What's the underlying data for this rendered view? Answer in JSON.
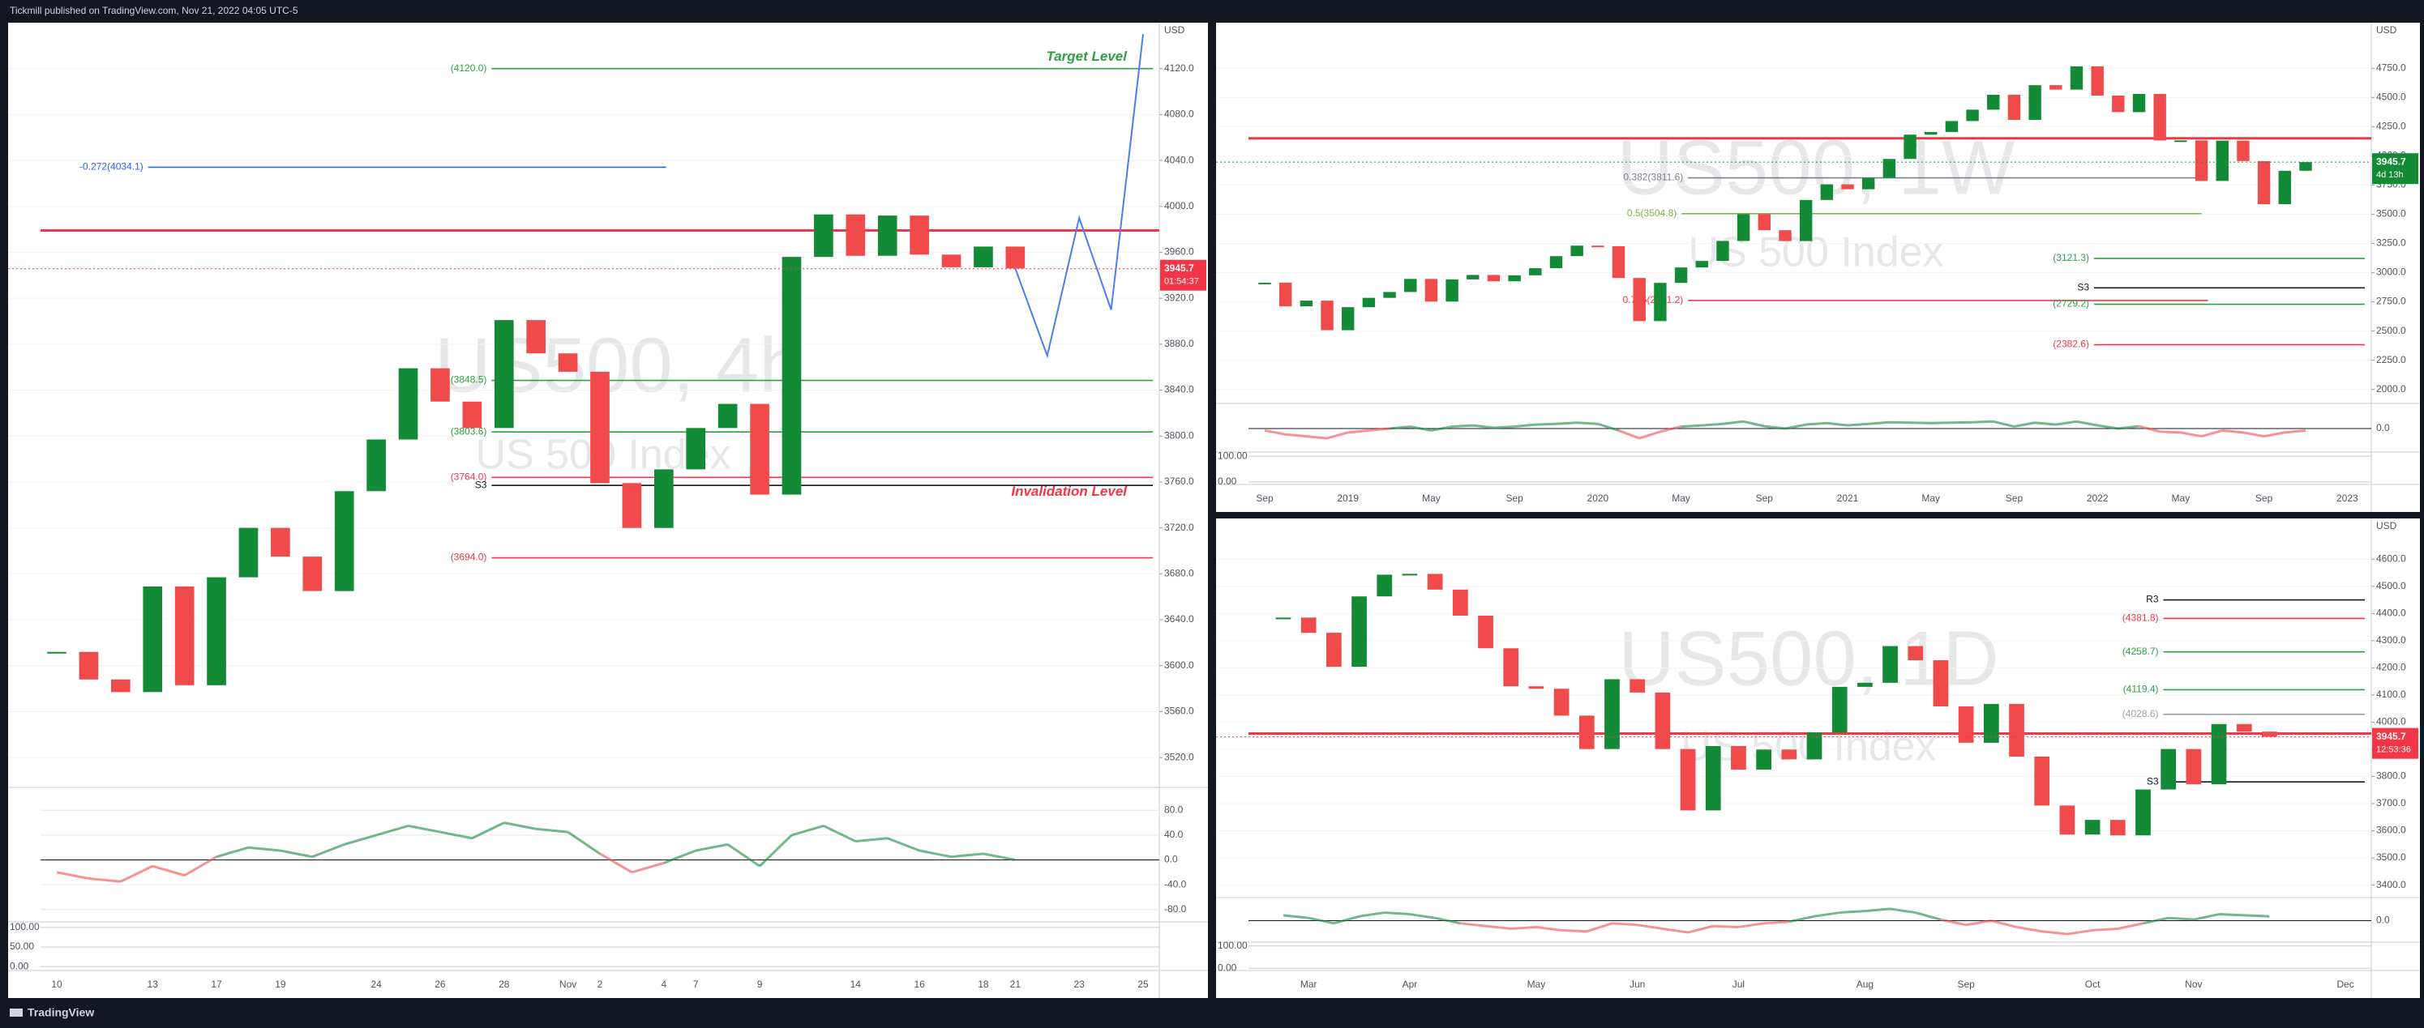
{
  "header": {
    "text": "Tickmill published on TradingView.com, Nov 21, 2022 04:05 UTC-5"
  },
  "footer": {
    "brand": "TradingView"
  },
  "chart_data": [
    {
      "type": "candlestick",
      "title": "US500, 4h",
      "subtitle": "US 500 Index",
      "currency": "USD",
      "up_color": "#138a36",
      "down_color": "#f04a4a",
      "categories": [
        "10",
        null,
        null,
        "13",
        null,
        "17",
        null,
        "19",
        null,
        null,
        "24",
        null,
        "26",
        null,
        "28",
        null,
        "Nov",
        "2",
        null,
        "4",
        "7",
        null,
        "9",
        null,
        null,
        "14",
        null,
        "16",
        null,
        "18",
        "21",
        null,
        "23",
        null,
        "25"
      ],
      "values": [
        3612,
        3588,
        3577,
        3669,
        3583,
        3677,
        3720,
        3695,
        3665,
        3752,
        3797,
        3859,
        3830,
        3807,
        3901,
        3872,
        3856,
        3759,
        3720,
        3771,
        3807,
        3828,
        3749,
        3956,
        3993,
        3957,
        3992,
        3958,
        3947,
        3965,
        3946,
        null,
        null,
        null,
        null
      ],
      "projection": {
        "color": "#4a7df0",
        "values": [
          null,
          null,
          null,
          null,
          null,
          null,
          null,
          null,
          null,
          null,
          null,
          null,
          null,
          null,
          null,
          null,
          null,
          null,
          null,
          null,
          null,
          null,
          null,
          null,
          null,
          null,
          null,
          null,
          null,
          null,
          3946,
          3870,
          3990,
          3910,
          4150
        ]
      },
      "ylim": [
        3494,
        4160
      ],
      "yticks": [
        {
          "value": 3520,
          "label": "3520.0"
        },
        {
          "value": 3560,
          "label": "3560.0"
        },
        {
          "value": 3600,
          "label": "3600.0"
        },
        {
          "value": 3640,
          "label": "3640.0"
        },
        {
          "value": 3680,
          "label": "3680.0"
        },
        {
          "value": 3720,
          "label": "3720.0"
        },
        {
          "value": 3760,
          "label": "3760.0"
        },
        {
          "value": 3800,
          "label": "3800.0"
        },
        {
          "value": 3840,
          "label": "3840.0"
        },
        {
          "value": 3880,
          "label": "3880.0"
        },
        {
          "value": 3920,
          "label": "3920.0"
        },
        {
          "value": 3960,
          "label": "3960.0"
        },
        {
          "value": 4000,
          "label": "4000.0"
        },
        {
          "value": 4040,
          "label": "4040.0"
        },
        {
          "value": 4080,
          "label": "4080.0"
        },
        {
          "value": 4120,
          "label": "4120.0"
        }
      ],
      "levels": [
        {
          "value": 4120,
          "label": "(4120.0)",
          "color": "#2ea043"
        },
        {
          "value": 4034.1,
          "label": "-0.272(4034.1)",
          "color": "#2962ff"
        },
        {
          "value": 3979,
          "color": "#f23645"
        },
        {
          "value": 3848.5,
          "label": "(3848.5)",
          "color": "#2ea043"
        },
        {
          "value": 3803.6,
          "label": "(3803.6)",
          "color": "#2ea043"
        },
        {
          "value": 3764,
          "label": "(3764.0)",
          "color": "#f23645"
        },
        {
          "value": 3757,
          "label": "S3",
          "color": "#131722"
        },
        {
          "value": 3694,
          "label": "(3694.0)",
          "color": "#f23645"
        }
      ],
      "annotations": [
        {
          "text": "Target Level",
          "color": "#2ea043"
        },
        {
          "text": "Invalidation Level",
          "color": "#f23645"
        }
      ],
      "last_price": {
        "value": 3945.7,
        "color": "#f23645",
        "timer": "01:54:37"
      },
      "oscillator": {
        "ylim": [
          -100,
          100
        ],
        "yticks": [
          {
            "value": 80,
            "label": "80.0"
          },
          {
            "value": 40,
            "label": "40.0"
          },
          {
            "value": 0,
            "label": "0.0"
          },
          {
            "value": -40,
            "label": "-40.0"
          },
          {
            "value": -80,
            "label": "-80.0"
          }
        ],
        "values": [
          -20,
          -30,
          -35,
          -10,
          -25,
          5,
          20,
          15,
          5,
          25,
          40,
          55,
          45,
          35,
          60,
          50,
          45,
          10,
          -20,
          -5,
          15,
          25,
          -10,
          40,
          55,
          30,
          35,
          15,
          5,
          10,
          0,
          null,
          null,
          null,
          null
        ]
      },
      "stochastic": {
        "ylim": [
          -10,
          110
        ],
        "yticks": [
          {
            "value": 100,
            "label": "100.00"
          },
          {
            "value": 50,
            "label": "50.00"
          },
          {
            "value": 0,
            "label": "0.00"
          }
        ]
      }
    },
    {
      "type": "candlestick",
      "title": "US500, 1W",
      "subtitle": "US 500 Index",
      "currency": "USD",
      "up_color": "#138a36",
      "down_color": "#f04a4a",
      "categories": [
        "Sep",
        null,
        null,
        null,
        "2019",
        null,
        null,
        null,
        "May",
        null,
        null,
        null,
        "Sep",
        null,
        null,
        null,
        "2020",
        null,
        null,
        null,
        "May",
        null,
        null,
        null,
        "Sep",
        null,
        null,
        null,
        "2021",
        null,
        null,
        null,
        "May",
        null,
        null,
        null,
        "Sep",
        null,
        null,
        null,
        "2022",
        null,
        null,
        null,
        "May",
        null,
        null,
        null,
        "Sep",
        null,
        null,
        null,
        "2023",
        null
      ],
      "values": [
        2914,
        2711,
        2760,
        2507,
        2704,
        2784,
        2834,
        2946,
        2752,
        2942,
        2980,
        2926,
        2977,
        3038,
        3141,
        3231,
        3226,
        2954,
        2585,
        2912,
        3044,
        3100,
        3271,
        3500,
        3363,
        3270,
        3622,
        3756,
        3714,
        3811,
        3973,
        4181,
        4204,
        4298,
        4395,
        4523,
        4308,
        4605,
        4567,
        4766,
        4516,
        4374,
        4530,
        4132,
        4132,
        3785,
        4130,
        3955,
        3586,
        3872,
        3946,
        null,
        null,
        null
      ],
      "ylim": [
        1880,
        5140
      ],
      "yticks": [
        {
          "value": 2000,
          "label": "2000.0"
        },
        {
          "value": 2250,
          "label": "2250.0"
        },
        {
          "value": 2500,
          "label": "2500.0"
        },
        {
          "value": 2750,
          "label": "2750.0"
        },
        {
          "value": 3000,
          "label": "3000.0"
        },
        {
          "value": 3250,
          "label": "3250.0"
        },
        {
          "value": 3500,
          "label": "3500.0"
        },
        {
          "value": 3750,
          "label": "3750.0"
        },
        {
          "value": 4000,
          "label": "4000.0"
        },
        {
          "value": 4250,
          "label": "4250.0"
        },
        {
          "value": 4500,
          "label": "4500.0"
        },
        {
          "value": 4750,
          "label": "4750.0"
        }
      ],
      "levels": [
        {
          "value": 4150,
          "color": "#f23645"
        },
        {
          "value": 3811.6,
          "label": "0.382(3811.6)",
          "color": "#7a7f8a"
        },
        {
          "value": 3504.8,
          "label": "0.5(3504.8)",
          "color": "#7cb342"
        },
        {
          "value": 3121.3,
          "label": "(3121.3)",
          "color": "#2ea043"
        },
        {
          "value": 2870,
          "label": "S3",
          "color": "#131722"
        },
        {
          "value": 2761.2,
          "label": "0.786(2761.2)",
          "color": "#f23645"
        },
        {
          "value": 2729.2,
          "label": "(2729.2)",
          "color": "#2ea043"
        },
        {
          "value": 2382.6,
          "label": "(2382.6)",
          "color": "#f23645"
        }
      ],
      "last_price": {
        "value": 3945.7,
        "color": "#138a36",
        "timer": "4d 13h"
      },
      "oscillator": {
        "ylim": [
          -60,
          60
        ],
        "yticks": [
          {
            "value": 0,
            "label": "0.0"
          }
        ],
        "values": [
          -5,
          -15,
          -20,
          -25,
          -10,
          -5,
          0,
          5,
          -5,
          5,
          8,
          2,
          5,
          10,
          12,
          15,
          12,
          -5,
          -25,
          -8,
          5,
          8,
          12,
          18,
          6,
          0,
          10,
          14,
          8,
          12,
          16,
          15,
          14,
          15,
          16,
          18,
          5,
          15,
          10,
          18,
          8,
          0,
          6,
          -8,
          -10,
          -20,
          -5,
          -10,
          -20,
          -10,
          -5,
          null,
          null,
          null
        ]
      },
      "stochastic": {
        "ylim": [
          -10,
          110
        ],
        "yticks": [
          {
            "value": 100,
            "label": "100.00"
          },
          {
            "value": 0,
            "label": "0.00"
          }
        ]
      }
    },
    {
      "type": "candlestick",
      "title": "US500, 1D",
      "subtitle": "US 500 Index",
      "currency": "USD",
      "up_color": "#138a36",
      "down_color": "#f04a4a",
      "categories": [
        null,
        "Mar",
        null,
        null,
        null,
        "Apr",
        null,
        null,
        null,
        null,
        "May",
        null,
        null,
        null,
        "Jun",
        null,
        null,
        null,
        "Jul",
        null,
        null,
        null,
        null,
        "Aug",
        null,
        null,
        null,
        "Sep",
        null,
        null,
        null,
        null,
        "Oct",
        null,
        null,
        null,
        "Nov",
        null,
        null,
        null,
        null,
        null,
        "Dec"
      ],
      "values": [
        4385,
        4329,
        4204,
        4463,
        4543,
        4546,
        4488,
        4392,
        4272,
        4132,
        4123,
        4024,
        3901,
        4158,
        4109,
        3901,
        3675,
        3912,
        3825,
        3899,
        3863,
        3962,
        4130,
        4145,
        4280,
        4228,
        4058,
        3924,
        4067,
        3873,
        3693,
        3586,
        3640,
        3583,
        3752,
        3901,
        3771,
        3993,
        3965,
        3946,
        null,
        null,
        null
      ],
      "ylim": [
        3354,
        4750
      ],
      "yticks": [
        {
          "value": 3400,
          "label": "3400.0"
        },
        {
          "value": 3500,
          "label": "3500.0"
        },
        {
          "value": 3600,
          "label": "3600.0"
        },
        {
          "value": 3700,
          "label": "3700.0"
        },
        {
          "value": 3800,
          "label": "3800.0"
        },
        {
          "value": 3900,
          "label": "3900.0"
        },
        {
          "value": 4000,
          "label": "4000.0"
        },
        {
          "value": 4100,
          "label": "4100.0"
        },
        {
          "value": 4200,
          "label": "4200.0"
        },
        {
          "value": 4300,
          "label": "4300.0"
        },
        {
          "value": 4400,
          "label": "4400.0"
        },
        {
          "value": 4500,
          "label": "4500.0"
        },
        {
          "value": 4600,
          "label": "4600.0"
        }
      ],
      "levels": [
        {
          "value": 4450,
          "label": "R3",
          "color": "#131722"
        },
        {
          "value": 4381.8,
          "label": "(4381.8)",
          "color": "#f23645"
        },
        {
          "value": 4258.7,
          "label": "(4258.7)",
          "color": "#2ea043"
        },
        {
          "value": 4119.4,
          "label": "(4119.4)",
          "color": "#2ea043"
        },
        {
          "value": 4028.6,
          "label": "(4028.6)",
          "color": "#9aa0aa"
        },
        {
          "value": 3958,
          "color": "#f23645"
        },
        {
          "value": 3780,
          "label": "S3",
          "color": "#131722"
        }
      ],
      "last_price": {
        "value": 3945.7,
        "color": "#f23645",
        "timer": "12:53:36"
      },
      "oscillator": {
        "ylim": [
          -40,
          40
        ],
        "yticks": [
          {
            "value": 0,
            "label": "0.0"
          }
        ],
        "values": [
          10,
          5,
          -5,
          8,
          15,
          12,
          5,
          -5,
          -10,
          -15,
          -12,
          -18,
          -20,
          -5,
          -8,
          -15,
          -22,
          -10,
          -12,
          -5,
          -2,
          8,
          15,
          18,
          22,
          15,
          2,
          -8,
          0,
          -12,
          -20,
          -25,
          -18,
          -15,
          -5,
          5,
          2,
          12,
          10,
          8,
          null,
          null,
          null
        ]
      },
      "stochastic": {
        "ylim": [
          -10,
          110
        ],
        "yticks": [
          {
            "value": 100,
            "label": "100.00"
          },
          {
            "value": 0,
            "label": "0.00"
          }
        ]
      }
    }
  ]
}
